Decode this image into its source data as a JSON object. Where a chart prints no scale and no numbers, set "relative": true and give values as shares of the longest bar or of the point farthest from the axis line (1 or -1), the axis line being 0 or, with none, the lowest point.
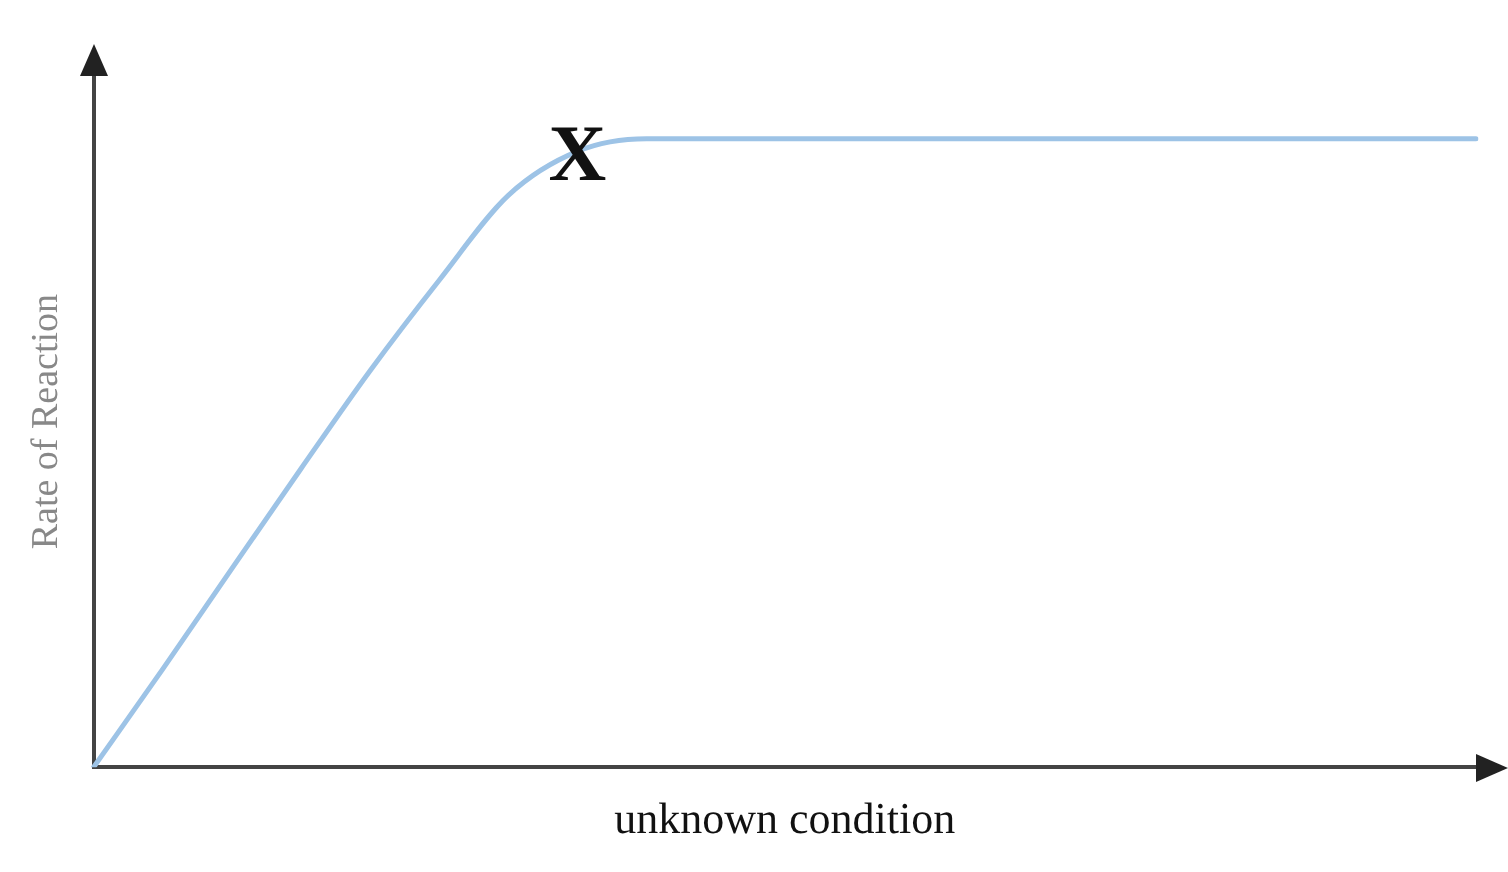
{
  "chart_data": {
    "type": "line",
    "relative": true,
    "xlabel": "unknown condition",
    "ylabel": "Rate of Reaction",
    "categories": [
      null,
      null,
      null,
      null,
      null,
      null,
      null,
      null,
      null,
      null,
      null,
      null,
      null,
      null,
      null,
      null,
      null,
      null,
      null,
      null,
      null
    ],
    "series": [
      {
        "color": "#9dc3e6",
        "values": [
          0,
          0.156,
          0.316,
          0.475,
          0.631,
          0.775,
          0.91,
          0.98,
          1,
          1,
          1,
          1,
          1,
          1,
          1,
          1,
          1,
          1,
          1,
          1,
          1
        ]
      }
    ],
    "annotations": [
      {
        "text": "X",
        "y": 0.98
      }
    ],
    "grid": false,
    "legend": false,
    "marker": "none",
    "line_style": "solid"
  }
}
